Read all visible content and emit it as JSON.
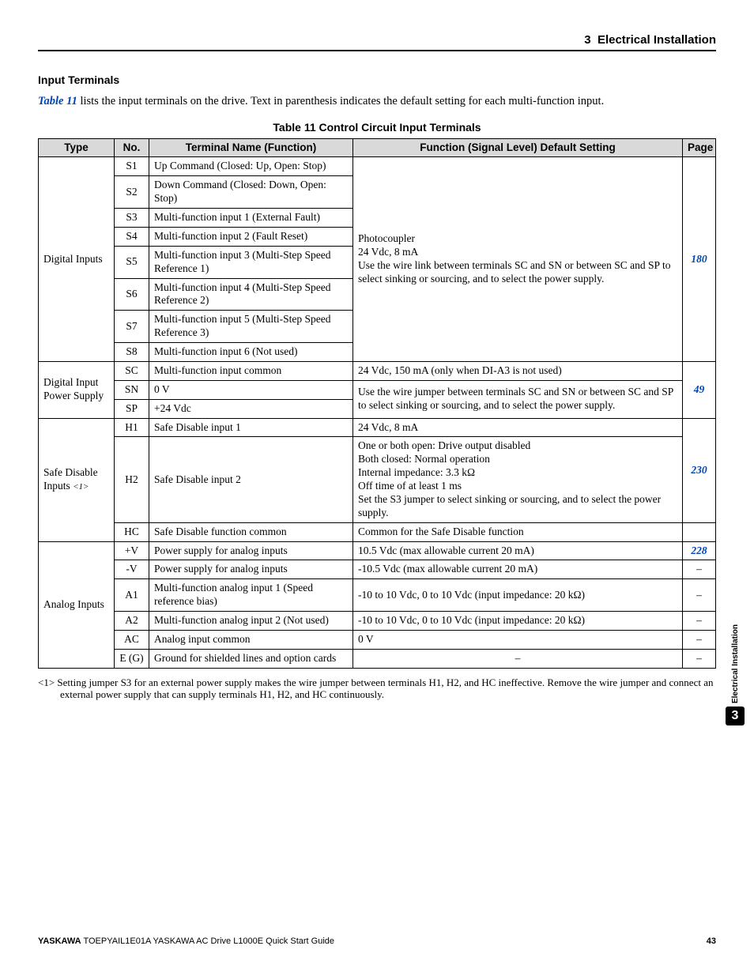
{
  "header": {
    "chapter_num": "3",
    "chapter_title": "Electrical Installation"
  },
  "section": {
    "title": "Input Terminals",
    "intro_pre": "",
    "table_ref": "Table 11",
    "intro_post": " lists the input terminals on the drive. Text in parenthesis indicates the default setting for each multi-function input."
  },
  "table": {
    "caption": "Table 11  Control Circuit Input Terminals",
    "headers": {
      "type": "Type",
      "no": "No.",
      "name": "Terminal Name (Function)",
      "func": "Function (Signal Level) Default Setting",
      "page": "Page"
    },
    "groups": [
      {
        "type_label": "Digital Inputs",
        "func_text": "Photocoupler\n24 Vdc, 8 mA\nUse the wire link between terminals SC and SN or between SC and SP to select sinking or sourcing, and to select the power supply.",
        "page": "180",
        "rows": [
          {
            "no": "S1",
            "name": "Up Command (Closed: Up, Open: Stop)"
          },
          {
            "no": "S2",
            "name": "Down Command (Closed: Down, Open: Stop)"
          },
          {
            "no": "S3",
            "name": "Multi-function input 1 (External Fault)"
          },
          {
            "no": "S4",
            "name": "Multi-function input 2 (Fault Reset)"
          },
          {
            "no": "S5",
            "name": "Multi-function input 3 (Multi-Step Speed Reference 1)"
          },
          {
            "no": "S6",
            "name": "Multi-function input 4 (Multi-Step Speed Reference 2)"
          },
          {
            "no": "S7",
            "name": "Multi-function input 5 (Multi-Step Speed Reference 3)"
          },
          {
            "no": "S8",
            "name": "Multi-function input 6 (Not used)"
          }
        ]
      },
      {
        "type_label": "Digital Input Power Supply",
        "page": "49",
        "rows": [
          {
            "no": "SC",
            "name": "Multi-function input common",
            "func": "24 Vdc, 150 mA (only when DI-A3 is not used)",
            "func_rowspan_rest": "Use the wire jumper between terminals SC and SN or between SC and SP to select sinking or sourcing, and to select the power supply."
          },
          {
            "no": "SN",
            "name": "0 V"
          },
          {
            "no": "SP",
            "name": "+24 Vdc"
          }
        ]
      },
      {
        "type_label_html": "Safe Disable Inputs ",
        "type_note": "<1>",
        "page": "230",
        "rows": [
          {
            "no": "H1",
            "name": "Safe Disable input 1",
            "func_first": "24 Vdc, 8 mA",
            "func_rest": "One or both open: Drive output disabled\nBoth closed: Normal operation\nInternal impedance: 3.3 kΩ\nOff time of at least 1 ms\nSet the S3 jumper to select sinking or sourcing, and to select the power supply."
          },
          {
            "no": "H2",
            "name": "Safe Disable input 2"
          },
          {
            "no": "HC",
            "name": "Safe Disable function common",
            "func_own": "Common for the Safe Disable function"
          }
        ]
      },
      {
        "type_label": "Analog Inputs",
        "rows": [
          {
            "no": "+V",
            "name": "Power supply for analog inputs",
            "func": "10.5 Vdc (max allowable current 20 mA)",
            "page": "228"
          },
          {
            "no": "-V",
            "name": "Power supply for analog inputs",
            "func": "-10.5 Vdc (max allowable current 20 mA)",
            "page": "–"
          },
          {
            "no": "A1",
            "name": "Multi-function analog input 1 (Speed reference bias)",
            "func": "-10 to 10 Vdc, 0 to 10 Vdc (input impedance: 20 kΩ)",
            "page": "–"
          },
          {
            "no": "A2",
            "name": "Multi-function analog input 2 (Not used)",
            "func": "-10 to 10 Vdc, 0 to 10 Vdc (input impedance: 20 kΩ)",
            "page": "–"
          },
          {
            "no": "AC",
            "name": "Analog input common",
            "func": "0 V",
            "page": "–"
          },
          {
            "no": "E (G)",
            "name": "Ground for shielded lines and option cards",
            "func": "–",
            "func_center": true,
            "page": "–"
          }
        ]
      }
    ]
  },
  "footnote": "<1> Setting jumper S3 for an external power supply makes the wire jumper between terminals H1, H2, and HC ineffective. Remove the wire jumper and connect an external power supply that can supply terminals H1, H2, and HC continuously.",
  "sidetab": {
    "label": "Electrical Installation",
    "num": "3"
  },
  "footer": {
    "left_bold": "YASKAWA",
    "left_rest": " TOEPYAIL1E01A YASKAWA AC Drive L1000E Quick Start Guide",
    "page_num": "43"
  }
}
